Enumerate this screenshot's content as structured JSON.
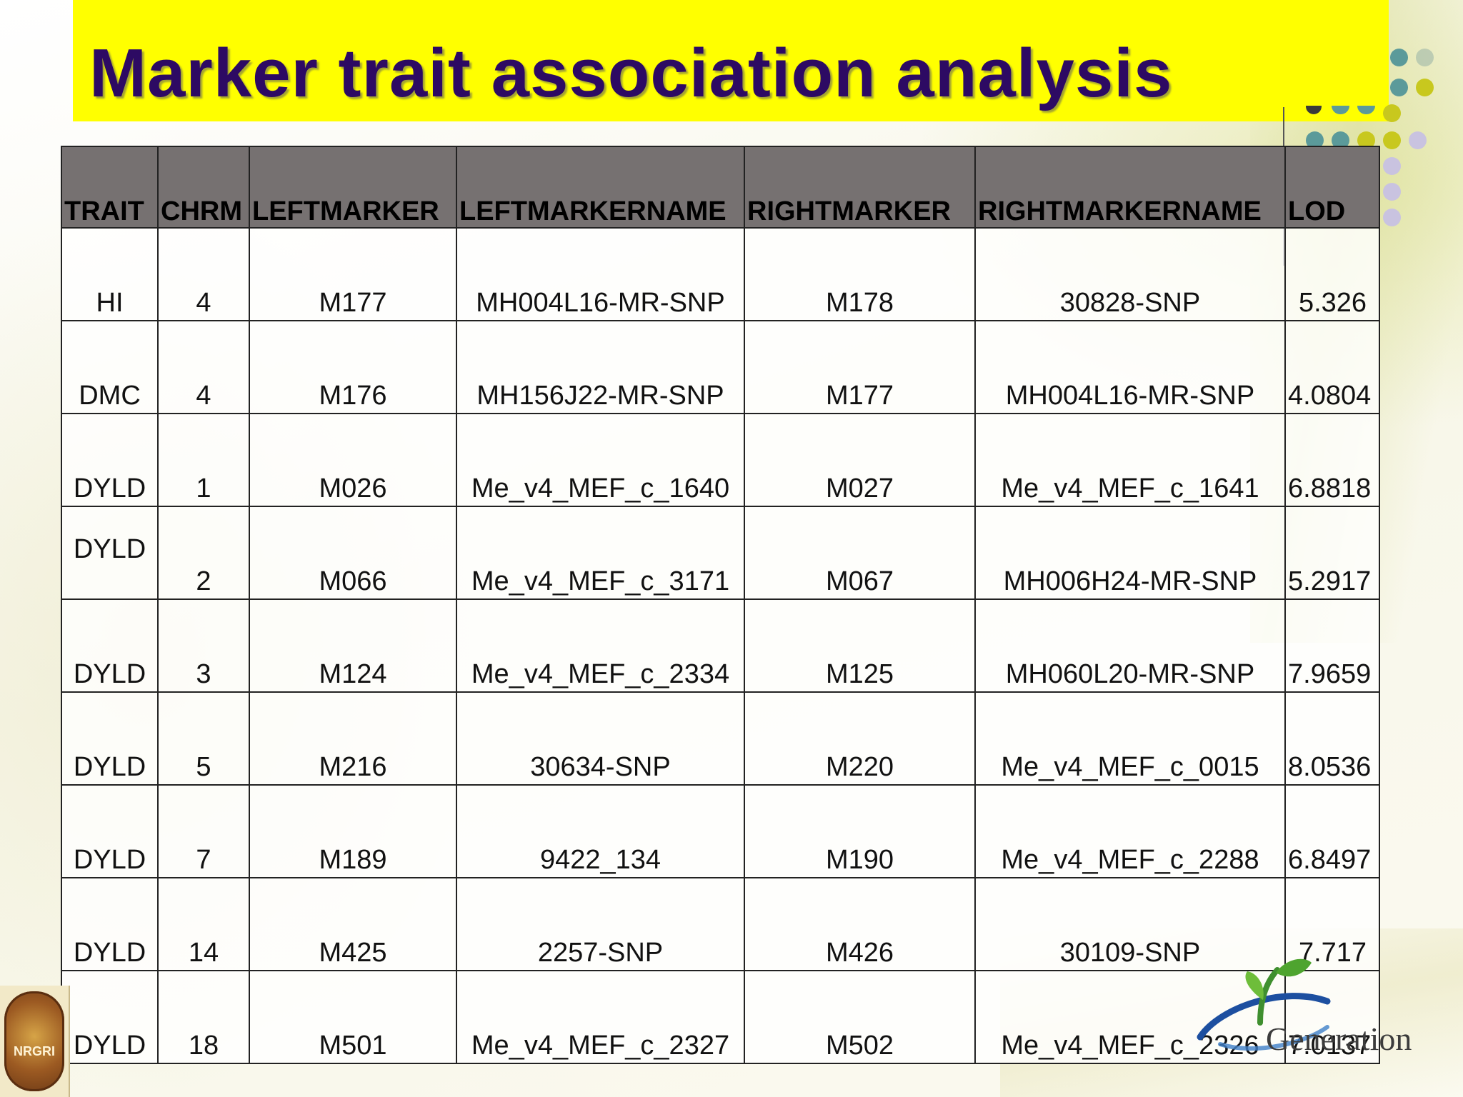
{
  "slide": {
    "title": "Marker trait association analysis"
  },
  "table": {
    "columns": [
      "TRAIT",
      "CHRM",
      "LEFTMARKER",
      "LEFTMARKERNAME",
      "RIGHTMARKER",
      "RIGHTMARKERNAME",
      "LOD"
    ],
    "rows": [
      [
        "HI",
        "4",
        "M177",
        "MH004L16-MR-SNP",
        "M178",
        "30828-SNP",
        "5.326"
      ],
      [
        "DMC",
        "4",
        "M176",
        "MH156J22-MR-SNP",
        "M177",
        "MH004L16-MR-SNP",
        "4.0804"
      ],
      [
        "DYLD",
        "1",
        "M026",
        "Me_v4_MEF_c_1640",
        "M027",
        "Me_v4_MEF_c_1641",
        "6.8818"
      ],
      [
        "DYLD",
        "2",
        "M066",
        "Me_v4_MEF_c_3171",
        "M067",
        "MH006H24-MR-SNP",
        "5.2917"
      ],
      [
        "DYLD",
        "3",
        "M124",
        "Me_v4_MEF_c_2334",
        "M125",
        "MH060L20-MR-SNP",
        "7.9659"
      ],
      [
        "DYLD",
        "5",
        "M216",
        "30634-SNP",
        "M220",
        "Me_v4_MEF_c_0015",
        "8.0536"
      ],
      [
        "DYLD",
        "7",
        "M189",
        "9422_134",
        "M190",
        "Me_v4_MEF_c_2288",
        "6.8497"
      ],
      [
        "DYLD",
        "14",
        "M425",
        "2257-SNP",
        "M426",
        "30109-SNP",
        "7.717"
      ],
      [
        "DYLD",
        "18",
        "M501",
        "Me_v4_MEF_c_2327",
        "M502",
        "Me_v4_MEF_c_2326",
        "7.0137"
      ]
    ]
  },
  "logos": {
    "left_logo_text": "NRGRI",
    "right_logo_text": "Generation",
    "left_logo_icon": "nrgri-seal-icon",
    "right_logo_icon": "nextgen-leaf-icon"
  },
  "colors": {
    "title_banner": "#ffff00",
    "title_text": "#2d0a63",
    "header_fill": "#767171",
    "dot_teal": "#5b9a9a",
    "dot_olive": "#c8c81e",
    "dot_lavender": "#c9c3e0"
  }
}
